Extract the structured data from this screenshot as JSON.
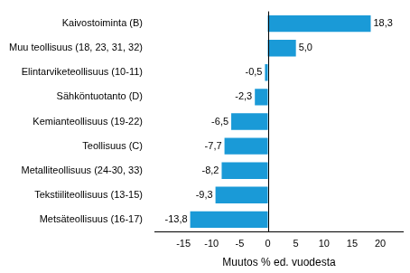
{
  "chart_data": {
    "type": "bar",
    "orientation": "horizontal",
    "x_label": "Muutos % ed. vuodesta",
    "categories": [
      "Kaivostoiminta (B)",
      "Muu teollisuus (18, 23, 31, 32)",
      "Elintarviketeollisuus (10-11)",
      "Sähköntuotanto (D)",
      "Kemianteollisuus (19-22)",
      "Teollisuus (C)",
      "Metalliteollisuus (24-30, 33)",
      "Tekstiiliteollisuus (13-15)",
      "Metsäteollisuus (16-17)"
    ],
    "values": [
      18.3,
      5.0,
      -0.5,
      -2.3,
      -6.5,
      -7.7,
      -8.2,
      -9.3,
      -13.8
    ],
    "value_labels": [
      "18,3",
      "5,0",
      "-0,5",
      "-2,3",
      "-6,5",
      "-7,7",
      "-8,2",
      "-9,3",
      "-13,8"
    ],
    "data_labels": true,
    "color": "#1a9ad7",
    "xlim": [
      -20,
      24
    ],
    "xticks": [
      -15,
      -10,
      -5,
      0,
      5,
      10,
      15,
      20
    ],
    "grid": false
  }
}
